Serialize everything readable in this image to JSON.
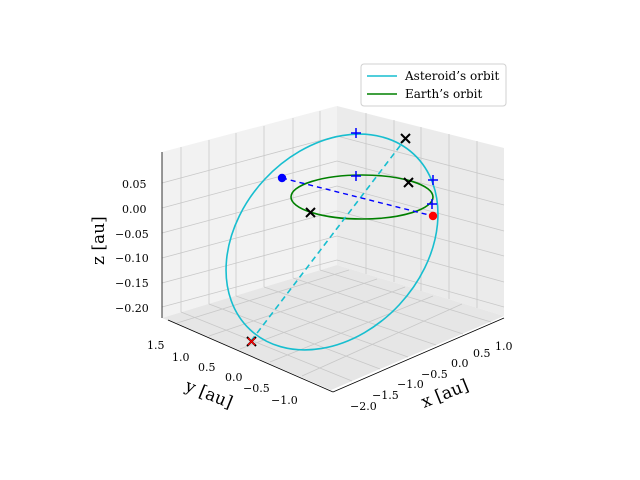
{
  "chart_data": {
    "type": "line",
    "subtype": "3d-orbit-plot",
    "title": "",
    "xlabel": "x [au]",
    "ylabel": "y [au]",
    "zlabel": "z [au]",
    "x_ticks": [
      "−2.0",
      "−1.5",
      "−1.0",
      "−0.5",
      "0.0",
      "0.5",
      "1.0"
    ],
    "y_ticks": [
      "1.5",
      "1.0",
      "0.5",
      "0.0",
      "−0.5",
      "−1.0"
    ],
    "z_ticks": [
      "0.05",
      "0.00",
      "−0.05",
      "−0.10",
      "−0.15",
      "−0.20"
    ],
    "xlim": [
      -2.2,
      1.2
    ],
    "ylim": [
      -1.3,
      1.6
    ],
    "zlim": [
      -0.22,
      0.11
    ],
    "grid": true,
    "legend_position": "top-right",
    "series": [
      {
        "name": "Asteroid’s orbit",
        "color": "#17becf",
        "kind": "ellipse"
      },
      {
        "name": "Earth’s orbit",
        "color": "#008000",
        "kind": "ellipse"
      }
    ],
    "markers": {
      "blue_dot": {
        "color": "#0000ff",
        "shape": "circle"
      },
      "red_dot": {
        "color": "#ff0000",
        "shape": "circle"
      },
      "plus_color": "#0000ff",
      "x_color": "#000000",
      "x_red_color": "#ff0000"
    },
    "lines": {
      "asteroid_line_of_nodes": {
        "color": "#17becf",
        "style": "dashed"
      },
      "earth_line": {
        "color": "#0000ff",
        "style": "dashed"
      }
    }
  }
}
